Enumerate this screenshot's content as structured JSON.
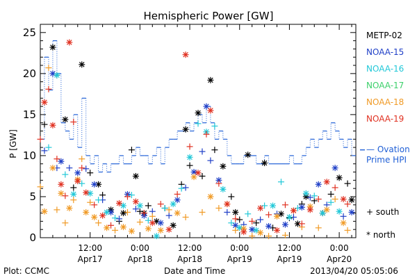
{
  "chart_data": {
    "type": "scatter",
    "title": "Hemispheric Power [GW]",
    "ylabel": "P [GW]",
    "xlabel": "Date and Time",
    "ylim": [
      0,
      26
    ],
    "y_ticks": [
      0,
      5,
      10,
      15,
      20,
      25
    ],
    "x_range_hours": [
      0,
      76
    ],
    "x_ticks": [
      {
        "hour": 12,
        "label_time": "12:00",
        "label_date": "Apr17"
      },
      {
        "hour": 24,
        "label_time": "0:00",
        "label_date": "Apr18"
      },
      {
        "hour": 36,
        "label_time": "12:00",
        "label_date": "Apr18"
      },
      {
        "hour": 48,
        "label_time": "0:00",
        "label_date": "Apr19"
      },
      {
        "hour": 60,
        "label_time": "12:00",
        "label_date": "Apr19"
      },
      {
        "hour": 72,
        "label_time": "0:00",
        "label_date": "Apr20"
      }
    ],
    "ovation": {
      "name": "Ovation Prime HPI",
      "label_line1": "— Ovation",
      "label_line2": "Prime HPI",
      "color": "#1f5fd6",
      "x": [
        0,
        1,
        2,
        3,
        4,
        5,
        6,
        7,
        8,
        9,
        10,
        11,
        12,
        13,
        14,
        15,
        16,
        17,
        18,
        19,
        20,
        21,
        22,
        23,
        24,
        25,
        26,
        27,
        28,
        29,
        30,
        31,
        32,
        33,
        34,
        35,
        36,
        37,
        38,
        39,
        40,
        41,
        42,
        43,
        44,
        45,
        46,
        47,
        48,
        49,
        50,
        51,
        52,
        53,
        54,
        55,
        56,
        57,
        58,
        59,
        60,
        61,
        62,
        63,
        64,
        65,
        66,
        67,
        68,
        69,
        70,
        71,
        72,
        73,
        74,
        75
      ],
      "y": [
        12,
        22,
        18,
        24,
        20,
        14,
        13,
        12,
        15,
        11,
        17,
        10,
        9,
        10,
        8,
        9,
        8,
        9,
        9,
        10,
        9,
        9,
        10,
        11,
        10,
        10,
        9,
        10,
        11,
        9,
        11,
        12,
        12,
        13,
        13,
        14,
        13,
        14,
        15,
        14,
        16,
        14,
        12,
        13,
        12,
        10,
        9,
        9,
        9,
        10,
        10,
        10,
        9,
        9,
        10,
        9,
        9,
        9,
        9,
        9,
        10,
        9,
        9,
        10,
        11,
        12,
        11,
        12,
        13,
        12,
        14,
        13,
        12,
        11,
        12,
        10
      ]
    },
    "series": [
      {
        "name": "METP-02",
        "color": "#000000",
        "points": [
          [
            1,
            13.8
          ],
          [
            3,
            23.2
          ],
          [
            4,
            19.8
          ],
          [
            6,
            14.4
          ],
          [
            8,
            6.1
          ],
          [
            10,
            21.1
          ],
          [
            12,
            7.9
          ],
          [
            14,
            6.5
          ],
          [
            15,
            5.2
          ],
          [
            17,
            3.4
          ],
          [
            19,
            2.0
          ],
          [
            20,
            3.0
          ],
          [
            22,
            10.7
          ],
          [
            23,
            7.5
          ],
          [
            24,
            3.2
          ],
          [
            25,
            3.0
          ],
          [
            26,
            3.9
          ],
          [
            28,
            2.0
          ],
          [
            30,
            3.6
          ],
          [
            32,
            1.5
          ],
          [
            34,
            6.5
          ],
          [
            35,
            13.2
          ],
          [
            36,
            8.8
          ],
          [
            38,
            15.2
          ],
          [
            39,
            7.5
          ],
          [
            41,
            19.2
          ],
          [
            42,
            10.7
          ],
          [
            44,
            8.7
          ],
          [
            46,
            5.0
          ],
          [
            47,
            3.1
          ],
          [
            48,
            2.2
          ],
          [
            50,
            10.1
          ],
          [
            52,
            1.8
          ],
          [
            54,
            9.1
          ],
          [
            56,
            1.2
          ],
          [
            58,
            2.9
          ],
          [
            60,
            2.4
          ],
          [
            62,
            1.7
          ],
          [
            63,
            4.1
          ],
          [
            64,
            5.0
          ],
          [
            66,
            4.5
          ],
          [
            68,
            3.0
          ],
          [
            70,
            5.3
          ],
          [
            72,
            7.3
          ],
          [
            74,
            6.6
          ],
          [
            75,
            4.6
          ]
        ]
      },
      {
        "name": "NOAA-15",
        "color": "#1f3fc7",
        "points": [
          [
            1,
            10.6
          ],
          [
            3,
            20.0
          ],
          [
            4,
            8.5
          ],
          [
            5,
            9.3
          ],
          [
            7,
            8.5
          ],
          [
            9,
            7.9
          ],
          [
            11,
            8.4
          ],
          [
            13,
            6.5
          ],
          [
            15,
            4.6
          ],
          [
            17,
            3.1
          ],
          [
            19,
            2.3
          ],
          [
            21,
            5.3
          ],
          [
            23,
            3.5
          ],
          [
            25,
            2.7
          ],
          [
            27,
            3.2
          ],
          [
            29,
            1.8
          ],
          [
            31,
            2.7
          ],
          [
            33,
            4.6
          ],
          [
            35,
            6.1
          ],
          [
            37,
            8.0
          ],
          [
            39,
            10.5
          ],
          [
            40,
            16.0
          ],
          [
            41,
            9.4
          ],
          [
            43,
            7.0
          ],
          [
            45,
            3.1
          ],
          [
            47,
            1.5
          ],
          [
            49,
            1.6
          ],
          [
            51,
            1.0
          ],
          [
            53,
            2.2
          ],
          [
            55,
            1.4
          ],
          [
            57,
            2.9
          ],
          [
            59,
            1.6
          ],
          [
            61,
            2.5
          ],
          [
            63,
            3.7
          ],
          [
            65,
            4.9
          ],
          [
            67,
            6.5
          ],
          [
            69,
            4.0
          ],
          [
            71,
            8.5
          ],
          [
            73,
            2.6
          ],
          [
            75,
            3.1
          ]
        ]
      },
      {
        "name": "NOAA-16",
        "color": "#21c8d8",
        "points": [
          [
            2,
            11.0
          ],
          [
            4,
            19.8
          ],
          [
            6,
            7.7
          ],
          [
            8,
            5.3
          ],
          [
            10,
            6.6
          ],
          [
            12,
            5.4
          ],
          [
            14,
            4.6
          ],
          [
            16,
            3.1
          ],
          [
            18,
            2.4
          ],
          [
            20,
            3.9
          ],
          [
            22,
            5.2
          ],
          [
            24,
            3.9
          ],
          [
            26,
            2.1
          ],
          [
            28,
            0.2
          ],
          [
            30,
            3.6
          ],
          [
            32,
            4.1
          ],
          [
            34,
            6.0
          ],
          [
            36,
            9.8
          ],
          [
            38,
            13.9
          ],
          [
            40,
            12.9
          ],
          [
            42,
            13.6
          ],
          [
            44,
            5.9
          ],
          [
            46,
            1.8
          ],
          [
            48,
            1.2
          ],
          [
            50,
            2.9
          ],
          [
            52,
            0.9
          ],
          [
            54,
            3.9
          ],
          [
            56,
            3.9
          ],
          [
            58,
            6.8
          ],
          [
            60,
            2.5
          ],
          [
            62,
            3.6
          ],
          [
            64,
            5.4
          ],
          [
            66,
            5.1
          ],
          [
            68,
            3.0
          ],
          [
            70,
            4.3
          ],
          [
            72,
            3.2
          ]
        ]
      },
      {
        "name": "NOAA-17",
        "color": "#3cd06a",
        "points": []
      },
      {
        "name": "NOAA-18",
        "color": "#f09a25",
        "points": [
          [
            0,
            6.2
          ],
          [
            1,
            3.2
          ],
          [
            2,
            20.7
          ],
          [
            3,
            8.5
          ],
          [
            4,
            3.4
          ],
          [
            5,
            5.4
          ],
          [
            6,
            1.8
          ],
          [
            7,
            3.6
          ],
          [
            8,
            4.6
          ],
          [
            9,
            7.1
          ],
          [
            10,
            9.6
          ],
          [
            11,
            3.1
          ],
          [
            12,
            4.3
          ],
          [
            13,
            2.5
          ],
          [
            14,
            1.8
          ],
          [
            16,
            1.2
          ],
          [
            18,
            0.9
          ],
          [
            20,
            1.3
          ],
          [
            21,
            3.1
          ],
          [
            22,
            0.8
          ],
          [
            24,
            1.9
          ],
          [
            26,
            1.1
          ],
          [
            27,
            2.6
          ],
          [
            29,
            0.9
          ],
          [
            31,
            3.4
          ],
          [
            33,
            3.0
          ],
          [
            35,
            2.5
          ],
          [
            37,
            7.4
          ],
          [
            39,
            3.1
          ],
          [
            41,
            5.0
          ],
          [
            43,
            3.6
          ],
          [
            45,
            4.1
          ],
          [
            47,
            0.9
          ],
          [
            49,
            1.1
          ],
          [
            51,
            0.2
          ],
          [
            53,
            0.6
          ],
          [
            55,
            0.2
          ],
          [
            57,
            2.6
          ],
          [
            59,
            0.3
          ],
          [
            61,
            3.3
          ],
          [
            63,
            1.3
          ],
          [
            65,
            3.8
          ],
          [
            67,
            1.2
          ],
          [
            69,
            3.4
          ],
          [
            71,
            4.7
          ],
          [
            73,
            1.8
          ],
          [
            74,
            0.9
          ]
        ]
      },
      {
        "name": "NOAA-19",
        "color": "#e03020",
        "points": [
          [
            0,
            12.0
          ],
          [
            1,
            16.5
          ],
          [
            2,
            18.1
          ],
          [
            3,
            13.7
          ],
          [
            4,
            9.6
          ],
          [
            5,
            6.5
          ],
          [
            6,
            5.1
          ],
          [
            7,
            23.8
          ],
          [
            8,
            14.1
          ],
          [
            9,
            6.9
          ],
          [
            10,
            8.5
          ],
          [
            11,
            5.5
          ],
          [
            13,
            4.0
          ],
          [
            15,
            2.7
          ],
          [
            17,
            1.5
          ],
          [
            19,
            4.2
          ],
          [
            21,
            5.0
          ],
          [
            23,
            4.4
          ],
          [
            25,
            3.0
          ],
          [
            27,
            1.8
          ],
          [
            29,
            4.1
          ],
          [
            31,
            1.0
          ],
          [
            33,
            5.3
          ],
          [
            35,
            22.3
          ],
          [
            36,
            11.1
          ],
          [
            38,
            7.9
          ],
          [
            40,
            12.6
          ],
          [
            41,
            15.5
          ],
          [
            43,
            6.6
          ],
          [
            45,
            4.1
          ],
          [
            47,
            2.3
          ],
          [
            49,
            0.7
          ],
          [
            51,
            2.0
          ],
          [
            53,
            3.6
          ],
          [
            55,
            2.8
          ],
          [
            57,
            0.9
          ],
          [
            59,
            4.0
          ],
          [
            61,
            3.3
          ],
          [
            63,
            1.7
          ],
          [
            65,
            3.4
          ],
          [
            67,
            4.7
          ],
          [
            69,
            6.8
          ],
          [
            71,
            6.1
          ],
          [
            73,
            4.7
          ],
          [
            74,
            4.1
          ]
        ]
      }
    ],
    "marker_legend": [
      {
        "symbol": "+",
        "label": "south"
      },
      {
        "symbol": "*",
        "label": "north"
      }
    ]
  },
  "footer": {
    "left": "Plot: CCMC",
    "center": "Date and Time",
    "right": "2013/04/20 05:05:06"
  }
}
